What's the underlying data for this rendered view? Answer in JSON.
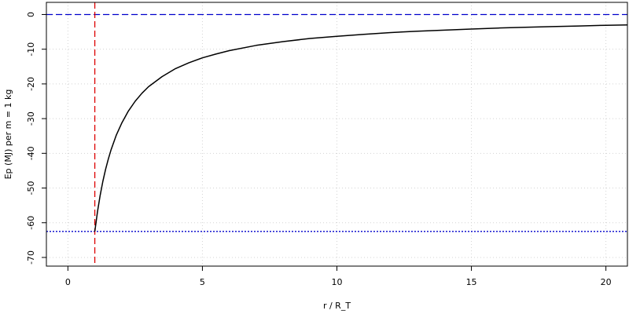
{
  "chart_data": {
    "type": "line",
    "title": "",
    "xlabel": "r / R_T",
    "ylabel": "Ep (MJ) per m = 1 kg",
    "xlim": [
      -0.8,
      20.8
    ],
    "ylim": [
      -72.5,
      3.5
    ],
    "x_ticks": [
      0,
      5,
      10,
      15,
      20
    ],
    "y_ticks": [
      0,
      -10,
      -20,
      -30,
      -40,
      -50,
      -60,
      -70
    ],
    "grid": true,
    "series": [
      {
        "style": "solid",
        "color": "#000000",
        "x": [
          1,
          1.1,
          1.2,
          1.3,
          1.4,
          1.5,
          1.6,
          1.8,
          2,
          2.25,
          2.5,
          2.75,
          3,
          3.5,
          4,
          4.5,
          5,
          5.5,
          6,
          7,
          8,
          9,
          10,
          11,
          12,
          13,
          14,
          15,
          16,
          17,
          18,
          19,
          20,
          20.8
        ],
        "y": [
          -62.5,
          -56.8,
          -52.1,
          -48.1,
          -44.6,
          -41.7,
          -39.1,
          -34.7,
          -31.3,
          -27.8,
          -25.0,
          -22.7,
          -20.8,
          -17.9,
          -15.6,
          -13.9,
          -12.5,
          -11.4,
          -10.4,
          -8.9,
          -7.8,
          -6.9,
          -6.3,
          -5.7,
          -5.2,
          -4.8,
          -4.5,
          -4.2,
          -3.9,
          -3.7,
          -3.5,
          -3.3,
          -3.1,
          -3.0
        ]
      }
    ],
    "reference_lines": [
      {
        "orientation": "horizontal",
        "value": 0,
        "color": "#0000cc",
        "style": "dashed"
      },
      {
        "orientation": "horizontal",
        "value": -62.5,
        "color": "#0000cc",
        "style": "dotted"
      },
      {
        "orientation": "vertical",
        "value": 1,
        "color": "#dd0000",
        "style": "dashed"
      }
    ],
    "colors": {
      "curve": "#000000",
      "horizontal_ref": "#0000cc",
      "vertical_ref": "#dd0000",
      "grid": "#d3d3d3",
      "frame": "#000000"
    }
  }
}
